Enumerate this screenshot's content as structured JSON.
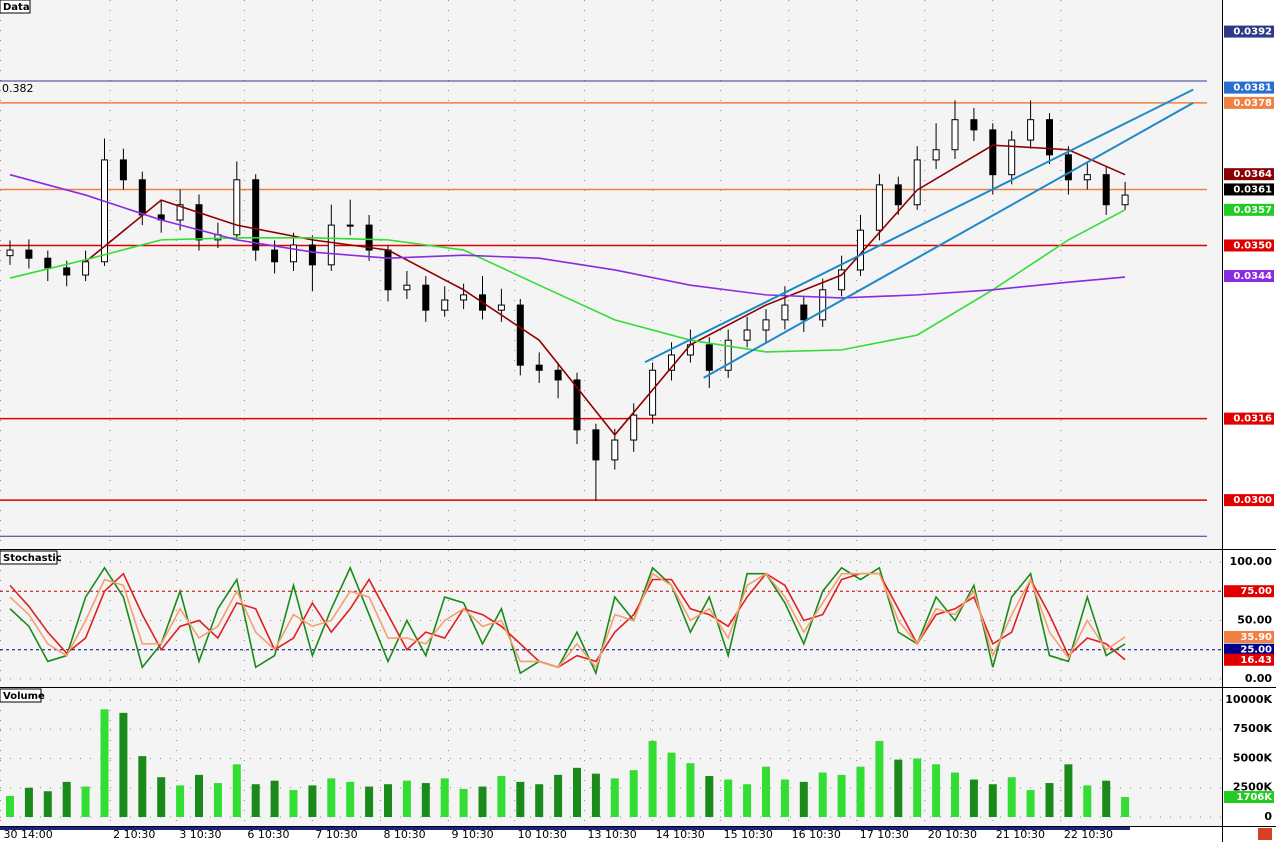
{
  "chart_data": [
    {
      "type": "candlestick",
      "title": "Data",
      "ylim": [
        0.02906,
        0.03982
      ],
      "candles": {
        "open": [
          0.0348,
          0.03491,
          0.03475,
          0.03456,
          0.03442,
          0.03468,
          0.03668,
          0.03629,
          0.0356,
          0.0355,
          0.0358,
          0.03511,
          0.03521,
          0.03629,
          0.03491,
          0.03468,
          0.03501,
          0.03462,
          0.0354,
          0.0354,
          0.03491,
          0.03413,
          0.03422,
          0.03373,
          0.03393,
          0.03403,
          0.03373,
          0.03383,
          0.03265,
          0.03255,
          0.03236,
          0.03138,
          0.03079,
          0.03118,
          0.03167,
          0.03255,
          0.03285,
          0.03305,
          0.03255,
          0.03314,
          0.03334,
          0.03354,
          0.03383,
          0.03354,
          0.03413,
          0.03452,
          0.0353,
          0.03619,
          0.0358,
          0.03668,
          0.03688,
          0.03747,
          0.03727,
          0.03639,
          0.03707,
          0.03747,
          0.03678,
          0.03629,
          0.03639,
          0.0358
        ],
        "high": [
          0.0351,
          0.03512,
          0.0349,
          0.0347,
          0.0349,
          0.0371,
          0.0369,
          0.03645,
          0.0359,
          0.0361,
          0.036,
          0.03545,
          0.03665,
          0.0364,
          0.0351,
          0.03525,
          0.0352,
          0.0358,
          0.0359,
          0.0356,
          0.035,
          0.0345,
          0.0344,
          0.0342,
          0.03425,
          0.0344,
          0.03415,
          0.03395,
          0.0329,
          0.0327,
          0.0325,
          0.0315,
          0.0314,
          0.0319,
          0.0327,
          0.0331,
          0.03335,
          0.0332,
          0.03335,
          0.0336,
          0.03375,
          0.0342,
          0.034,
          0.03435,
          0.0348,
          0.0356,
          0.0364,
          0.03635,
          0.03695,
          0.0374,
          0.03785,
          0.0377,
          0.0374,
          0.03725,
          0.03785,
          0.0376,
          0.03695,
          0.03665,
          0.03655,
          0.03625
        ],
        "low": [
          0.03462,
          0.03455,
          0.0343,
          0.0342,
          0.0343,
          0.0346,
          0.0361,
          0.0354,
          0.03525,
          0.0353,
          0.0349,
          0.03495,
          0.0351,
          0.0347,
          0.03445,
          0.0345,
          0.0341,
          0.0345,
          0.0352,
          0.0347,
          0.0339,
          0.03395,
          0.0335,
          0.0336,
          0.03375,
          0.03355,
          0.0335,
          0.03245,
          0.0323,
          0.032,
          0.0311,
          0.02999,
          0.0306,
          0.03095,
          0.0315,
          0.03235,
          0.0327,
          0.0322,
          0.0324,
          0.033,
          0.0331,
          0.03335,
          0.0333,
          0.0334,
          0.034,
          0.0344,
          0.0351,
          0.0356,
          0.0357,
          0.0365,
          0.0367,
          0.03705,
          0.036,
          0.0362,
          0.0369,
          0.0366,
          0.036,
          0.0361,
          0.0356,
          0.0357
        ],
        "close": [
          0.03491,
          0.03475,
          0.03456,
          0.03442,
          0.03468,
          0.03668,
          0.03629,
          0.0356,
          0.0355,
          0.0358,
          0.03511,
          0.03521,
          0.03629,
          0.03491,
          0.03468,
          0.03501,
          0.03462,
          0.0354,
          0.0354,
          0.03491,
          0.03413,
          0.03422,
          0.03373,
          0.03393,
          0.03403,
          0.03373,
          0.03383,
          0.03265,
          0.03255,
          0.03236,
          0.03138,
          0.03079,
          0.03118,
          0.03167,
          0.03255,
          0.03285,
          0.03305,
          0.03255,
          0.03314,
          0.03334,
          0.03354,
          0.03383,
          0.03354,
          0.03413,
          0.03452,
          0.0353,
          0.03619,
          0.0358,
          0.03668,
          0.03688,
          0.03747,
          0.03727,
          0.03639,
          0.03707,
          0.03747,
          0.03678,
          0.03629,
          0.03639,
          0.0358,
          0.03599
        ]
      },
      "series": [
        {
          "color": "#8b0000",
          "x": [
            4,
            8,
            12,
            16,
            20,
            24,
            28,
            32,
            36,
            40,
            44,
            48,
            52,
            56,
            59
          ],
          "values": [
            0.03468,
            0.03589,
            0.0354,
            0.03511,
            0.03491,
            0.03413,
            0.03314,
            0.03128,
            0.03305,
            0.03383,
            0.03442,
            0.03609,
            0.03697,
            0.03688,
            0.03639
          ]
        },
        {
          "color": "#33dd33",
          "x": [
            0,
            4,
            8,
            12,
            16,
            20,
            24,
            28,
            32,
            36,
            40,
            44,
            48,
            52,
            56,
            59
          ],
          "values": [
            0.03436,
            0.03472,
            0.03511,
            0.03515,
            0.03515,
            0.03511,
            0.03491,
            0.03422,
            0.03354,
            0.03314,
            0.03291,
            0.03295,
            0.03324,
            0.03413,
            0.03511,
            0.0357
          ]
        },
        {
          "color": "#8a2be2",
          "x": [
            0,
            4,
            8,
            12,
            16,
            20,
            24,
            28,
            32,
            36,
            40,
            44,
            48,
            52,
            56,
            59
          ],
          "values": [
            0.03639,
            0.03599,
            0.0355,
            0.03511,
            0.03487,
            0.03475,
            0.03481,
            0.03475,
            0.03452,
            0.03422,
            0.03403,
            0.03397,
            0.03403,
            0.03413,
            0.03428,
            0.03438
          ]
        }
      ],
      "trendlines": [
        {
          "color": "#1e88c8",
          "x": [
            33.6,
            62.6
          ],
          "values": [
            0.03271,
            0.03806
          ]
        },
        {
          "color": "#1e88c8",
          "x": [
            36.7,
            62.6
          ],
          "values": [
            0.0324,
            0.0378
          ]
        }
      ],
      "levels": [
        {
          "value": 0.03823,
          "color": "#2e3a87",
          "label": "0.382"
        },
        {
          "value": 0.0378,
          "color": "#f08040"
        },
        {
          "value": 0.0361,
          "color": "#f08040"
        },
        {
          "value": 0.035,
          "color": "#e00000"
        },
        {
          "value": 0.0316,
          "color": "#e00000"
        },
        {
          "value": 0.03,
          "color": "#e00000"
        },
        {
          "value": 0.02929,
          "color": "#2e3a87"
        }
      ],
      "tags": [
        {
          "value": 0.0392,
          "color": "#2e3a87"
        },
        {
          "value": 0.0381,
          "color": "#2a6fd0"
        },
        {
          "value": 0.0378,
          "color": "#f08040"
        },
        {
          "value": 0.0364,
          "color": "#8b0000"
        },
        {
          "value": 0.0361,
          "color": "#000000"
        },
        {
          "value": 0.0357,
          "color": "#22cc22"
        },
        {
          "value": 0.035,
          "label": "0.0350",
          "color": "#e00000"
        },
        {
          "value": 0.0344,
          "color": "#8a2be2"
        },
        {
          "value": 0.0316,
          "color": "#e00000"
        },
        {
          "value": 0.03,
          "label": "0.0300",
          "color": "#e00000"
        }
      ]
    },
    {
      "type": "line",
      "title": "Stochastic",
      "ylim": [
        -6,
        108.5
      ],
      "yticks": [
        {
          "value": 100,
          "label": "100.00"
        },
        {
          "value": 50,
          "label": "50.00"
        },
        {
          "value": 0,
          "label": "0.00"
        }
      ],
      "series": [
        {
          "color": "#1a8a1a",
          "values": [
            60,
            45,
            15,
            20,
            70,
            95,
            70,
            10,
            30,
            75,
            15,
            60,
            85,
            10,
            20,
            80,
            20,
            60,
            95,
            55,
            15,
            50,
            20,
            70,
            65,
            30,
            60,
            5,
            15,
            10,
            40,
            5,
            70,
            50,
            95,
            80,
            40,
            70,
            20,
            90,
            90,
            65,
            30,
            75,
            95,
            85,
            95,
            40,
            30,
            70,
            50,
            80,
            10,
            70,
            90,
            20,
            15,
            70,
            20,
            30
          ]
        },
        {
          "color": "#e02020",
          "values": [
            80,
            62,
            40,
            22,
            35,
            75,
            90,
            55,
            25,
            45,
            50,
            35,
            65,
            60,
            25,
            35,
            65,
            40,
            60,
            85,
            55,
            25,
            40,
            35,
            60,
            55,
            45,
            30,
            15,
            10,
            20,
            15,
            40,
            55,
            85,
            85,
            60,
            55,
            45,
            70,
            90,
            80,
            50,
            55,
            85,
            90,
            90,
            60,
            30,
            55,
            60,
            70,
            30,
            40,
            85,
            55,
            20,
            35,
            30,
            16.43
          ]
        },
        {
          "color": "#f4a070",
          "values": [
            70,
            55,
            30,
            20,
            50,
            85,
            80,
            30,
            30,
            60,
            35,
            45,
            75,
            40,
            25,
            55,
            45,
            50,
            75,
            70,
            35,
            35,
            30,
            50,
            60,
            45,
            50,
            15,
            15,
            10,
            30,
            10,
            55,
            50,
            90,
            80,
            50,
            60,
            35,
            80,
            90,
            70,
            40,
            65,
            90,
            90,
            90,
            50,
            30,
            60,
            55,
            75,
            20,
            55,
            85,
            40,
            18,
            50,
            25,
            35.9
          ]
        }
      ],
      "levels": [
        {
          "value": 75,
          "color": "#c00000"
        },
        {
          "value": 25,
          "color": "#00008b"
        }
      ],
      "tags": [
        {
          "value": 75,
          "label": "75.00",
          "color": "#e00000"
        },
        {
          "value": 35.9,
          "label": "35.90",
          "color": "#f08040"
        },
        {
          "value": 25,
          "label": "25.00",
          "color": "#00008b"
        },
        {
          "value": 16.43,
          "color": "#e00000"
        }
      ]
    },
    {
      "type": "bar",
      "title": "Volume",
      "ylim": [
        0,
        10850
      ],
      "yticks": [
        {
          "value": 10000,
          "label": "10000K"
        },
        {
          "value": 7500,
          "label": "7500K"
        },
        {
          "value": 5000,
          "label": "5000K"
        },
        {
          "value": 2500,
          "label": "2500K"
        },
        0
      ],
      "up_color": "#33dd33",
      "down_color": "#1a8a1a",
      "values": [
        1800,
        2500,
        2200,
        3000,
        2600,
        9200,
        8900,
        5200,
        3400,
        2700,
        3600,
        2900,
        4500,
        2800,
        3100,
        2300,
        2700,
        3300,
        3000,
        2600,
        2800,
        3100,
        2900,
        3300,
        2400,
        2600,
        3500,
        3000,
        2800,
        3600,
        4200,
        3700,
        3300,
        4000,
        6500,
        5500,
        4600,
        3500,
        3200,
        2800,
        4300,
        3200,
        3000,
        3800,
        3600,
        4300,
        6500,
        4900,
        5000,
        4500,
        3800,
        3200,
        2800,
        3400,
        2300,
        2900,
        4500,
        2700,
        3100,
        1706
      ],
      "tags": [
        {
          "value": 1706,
          "label": "1706K",
          "color": "#22cc22"
        }
      ],
      "xticks": [
        {
          "value": -0.5,
          "label": "30 14:00"
        },
        {
          "value": 5.3,
          "label": "2 10:30"
        },
        {
          "value": 8.8,
          "label": "3 10:30"
        },
        {
          "value": 12.4,
          "label": "6 10:30"
        },
        {
          "value": 16.0,
          "label": "7 10:30"
        },
        {
          "value": 19.6,
          "label": "8 10:30"
        },
        {
          "value": 23.2,
          "label": "9 10:30"
        },
        {
          "value": 26.7,
          "label": "10 10:30"
        },
        {
          "value": 30.4,
          "label": "13 10:30"
        },
        {
          "value": 34.0,
          "label": "14 10:30"
        },
        {
          "value": 37.6,
          "label": "15 10:30"
        },
        {
          "value": 41.2,
          "label": "16 10:30"
        },
        {
          "value": 44.8,
          "label": "17 10:30"
        },
        {
          "value": 48.4,
          "label": "20 10:30"
        },
        {
          "value": 52.0,
          "label": "21 10:30"
        },
        {
          "value": 55.6,
          "label": "22 10:30"
        }
      ]
    }
  ]
}
